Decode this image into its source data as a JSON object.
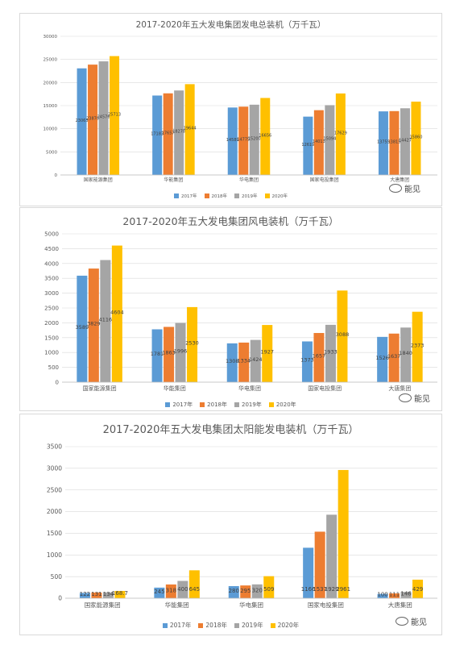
{
  "colors": {
    "2017年": "#5b9bd5",
    "2018年": "#ed7d31",
    "2019年": "#a5a5a5",
    "2020年": "#ffc000"
  },
  "watermark": "能见",
  "chart_data": [
    {
      "type": "bar",
      "title": "2017-2020年五大发电集团发电总装机（万千瓦）",
      "categories": [
        "国家能源集团",
        "华能集团",
        "华电集团",
        "国家电投集团",
        "大唐集团"
      ],
      "ylim": [
        0,
        30000
      ],
      "yticks": [
        0,
        5000,
        10000,
        15000,
        20000,
        25000,
        30000
      ],
      "legend_position": "bottom",
      "grid": true,
      "series": [
        {
          "name": "2017年",
          "values": [
            23063,
            17183,
            14589,
            12619,
            13755
          ]
        },
        {
          "name": "2018年",
          "values": [
            23870,
            17657,
            14775,
            14013,
            13815
          ]
        },
        {
          "name": "2019年",
          "values": [
            24576,
            18278,
            15200,
            15094,
            14427
          ]
        },
        {
          "name": "2020年",
          "values": [
            25713,
            19644,
            16656,
            17629,
            15860
          ]
        }
      ],
      "data_labels": [
        [
          "23063",
          "17183",
          "14589",
          "12619",
          "13755"
        ],
        [
          "23870",
          "17657",
          "14775",
          "14013",
          "13815"
        ],
        [
          "24576",
          "18278",
          "15200",
          "15094",
          "14427"
        ],
        [
          "25713",
          "19644",
          "16656",
          "17629",
          "15860"
        ]
      ]
    },
    {
      "type": "bar",
      "title": "2017-2020年五大发电集团风电装机（万千瓦）",
      "categories": [
        "国家能源集团",
        "华能集团",
        "华电集团",
        "国家电投集团",
        "大唐集团"
      ],
      "ylim": [
        0,
        5000
      ],
      "yticks": [
        0,
        500,
        1000,
        1500,
        2000,
        2500,
        3000,
        3500,
        4000,
        4500,
        5000
      ],
      "legend_position": "bottom",
      "grid": true,
      "series": [
        {
          "name": "2017年",
          "values": [
            3589,
            1781,
            1308,
            1373,
            1526
          ]
        },
        {
          "name": "2018年",
          "values": [
            3829,
            1863,
            1334,
            1657,
            1637
          ]
        },
        {
          "name": "2019年",
          "values": [
            4116,
            1996,
            1424,
            1933,
            1840
          ]
        },
        {
          "name": "2020年",
          "values": [
            4604,
            2530,
            1927,
            3088,
            2373
          ]
        }
      ],
      "data_labels": [
        [
          "3589",
          "1781",
          "1308",
          "1373",
          "1526"
        ],
        [
          "3829",
          "1863",
          "1334",
          "1657",
          "1637"
        ],
        [
          "4116",
          "1996",
          "1424",
          "1933",
          "1840"
        ],
        [
          "4604",
          "2530",
          "1927",
          "3088",
          "2373"
        ]
      ]
    },
    {
      "type": "bar",
      "title": "2017-2020年五大发电集团太阳能发电装机（万千瓦）",
      "categories": [
        "国家能源集团",
        "华能集团",
        "华电集团",
        "国家电投集团",
        "大唐集团"
      ],
      "ylim": [
        0,
        3500
      ],
      "yticks": [
        0,
        500,
        1000,
        1500,
        2000,
        2500,
        3000,
        3500
      ],
      "legend_position": "bottom",
      "grid": true,
      "series": [
        {
          "name": "2017年",
          "values": [
            122,
            245,
            280,
            1166,
            100
          ]
        },
        {
          "name": "2018年",
          "values": [
            131,
            318,
            295,
            1537,
            111
          ]
        },
        {
          "name": "2019年",
          "values": [
            134,
            400,
            320,
            1929,
            146
          ]
        },
        {
          "name": "2020年",
          "values": [
            168.7,
            645,
            509,
            2961,
            429
          ]
        }
      ],
      "data_labels": [
        [
          "122",
          "245",
          "280",
          "1166",
          "100"
        ],
        [
          "131",
          "318",
          "295",
          "1537",
          "111"
        ],
        [
          "134",
          "400",
          "320",
          "1929",
          "146"
        ],
        [
          "168.7",
          "645",
          "509",
          "2961",
          "429"
        ]
      ]
    }
  ]
}
